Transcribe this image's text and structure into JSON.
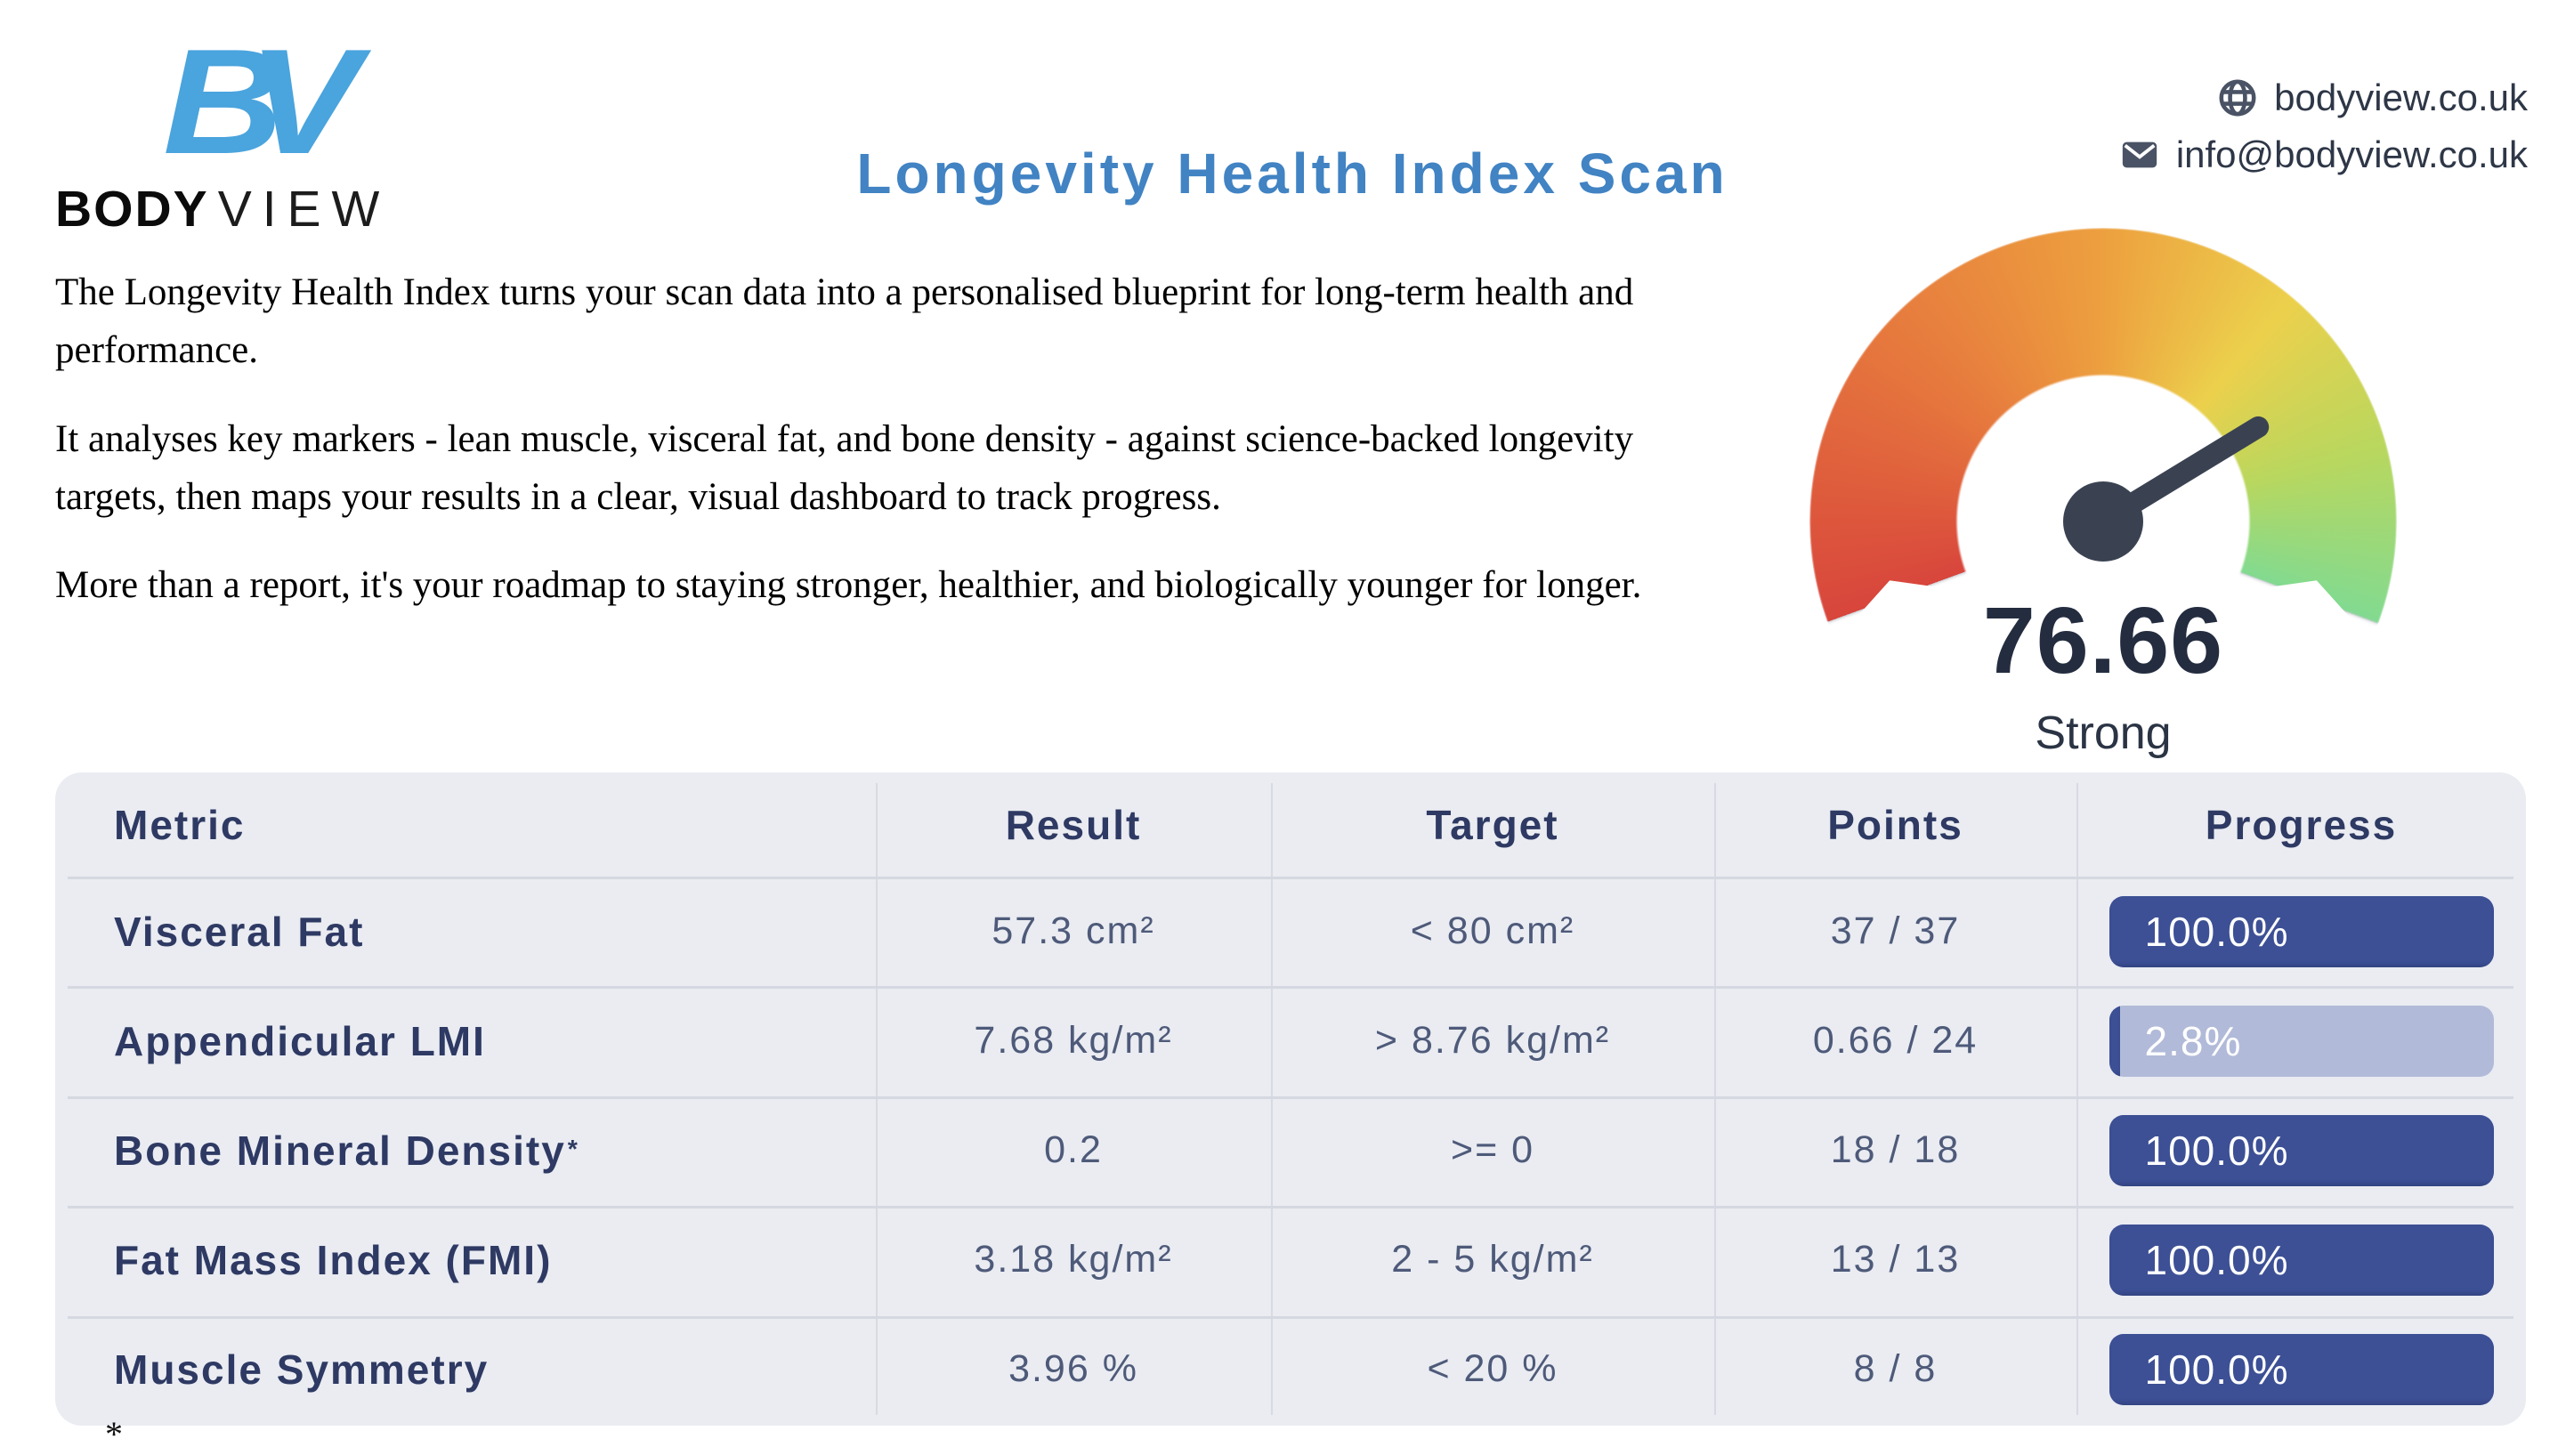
{
  "header": {
    "logo": {
      "monogram": "BV",
      "name_bold": "BODY",
      "name_light": "VIEW",
      "brand_color": "#4aa4dd"
    },
    "title": "Longevity Health Index Scan",
    "title_color": "#4183c3",
    "contact": {
      "website": "bodyview.co.uk",
      "email": "info@bodyview.co.uk"
    }
  },
  "intro": {
    "paragraphs": [
      "The Longevity Health Index turns your scan data into a personalised blueprint for long-term health and performance.",
      "It analyses key markers - lean muscle, visceral fat, and bone density - against science-backed longevity targets, then maps your results in a clear, visual dashboard to track progress.",
      "More than a report, it's your roadmap to staying stronger, healthier, and biologically younger for longer."
    ]
  },
  "chart_data": {
    "type": "gauge",
    "title": "Longevity Health Index",
    "value": 76.66,
    "value_display": "76.66",
    "status_label": "Strong",
    "min": 0,
    "max": 100,
    "arc_span_deg": 220,
    "gradient_colors": [
      "#d8453c",
      "#e5743d",
      "#eda03f",
      "#ecd04c",
      "#b9d75e",
      "#82da90"
    ],
    "gradient_stops_deg": [
      0,
      55,
      110,
      150,
      185,
      220
    ],
    "needle_color": "#3a4252"
  },
  "table": {
    "headers": [
      "Metric",
      "Result",
      "Target",
      "Points",
      "Progress"
    ],
    "bar_fill_color": "#3d5095",
    "bar_track_color": "#b1bad8",
    "rows": [
      {
        "metric": "Visceral Fat",
        "footnote": false,
        "result": "57.3 cm²",
        "target": "< 80 cm²",
        "points": "37 / 37",
        "progress_pct": 100.0,
        "progress_label": "100.0%"
      },
      {
        "metric": "Appendicular LMI",
        "footnote": false,
        "result": "7.68 kg/m²",
        "target": "> 8.76 kg/m²",
        "points": "0.66 / 24",
        "progress_pct": 2.8,
        "progress_label": "2.8%"
      },
      {
        "metric": "Bone Mineral Density",
        "footnote": true,
        "result": "0.2",
        "target": ">= 0",
        "points": "18 / 18",
        "progress_pct": 100.0,
        "progress_label": "100.0%"
      },
      {
        "metric": "Fat Mass Index (FMI)",
        "footnote": false,
        "result": "3.18 kg/m²",
        "target": "2 - 5 kg/m²",
        "points": "13 / 13",
        "progress_pct": 100.0,
        "progress_label": "100.0%"
      },
      {
        "metric": "Muscle Symmetry",
        "footnote": false,
        "result": "3.96 %",
        "target": "< 20 %",
        "points": "8 / 8",
        "progress_pct": 100.0,
        "progress_label": "100.0%"
      }
    ]
  },
  "footnote_marker": "*"
}
